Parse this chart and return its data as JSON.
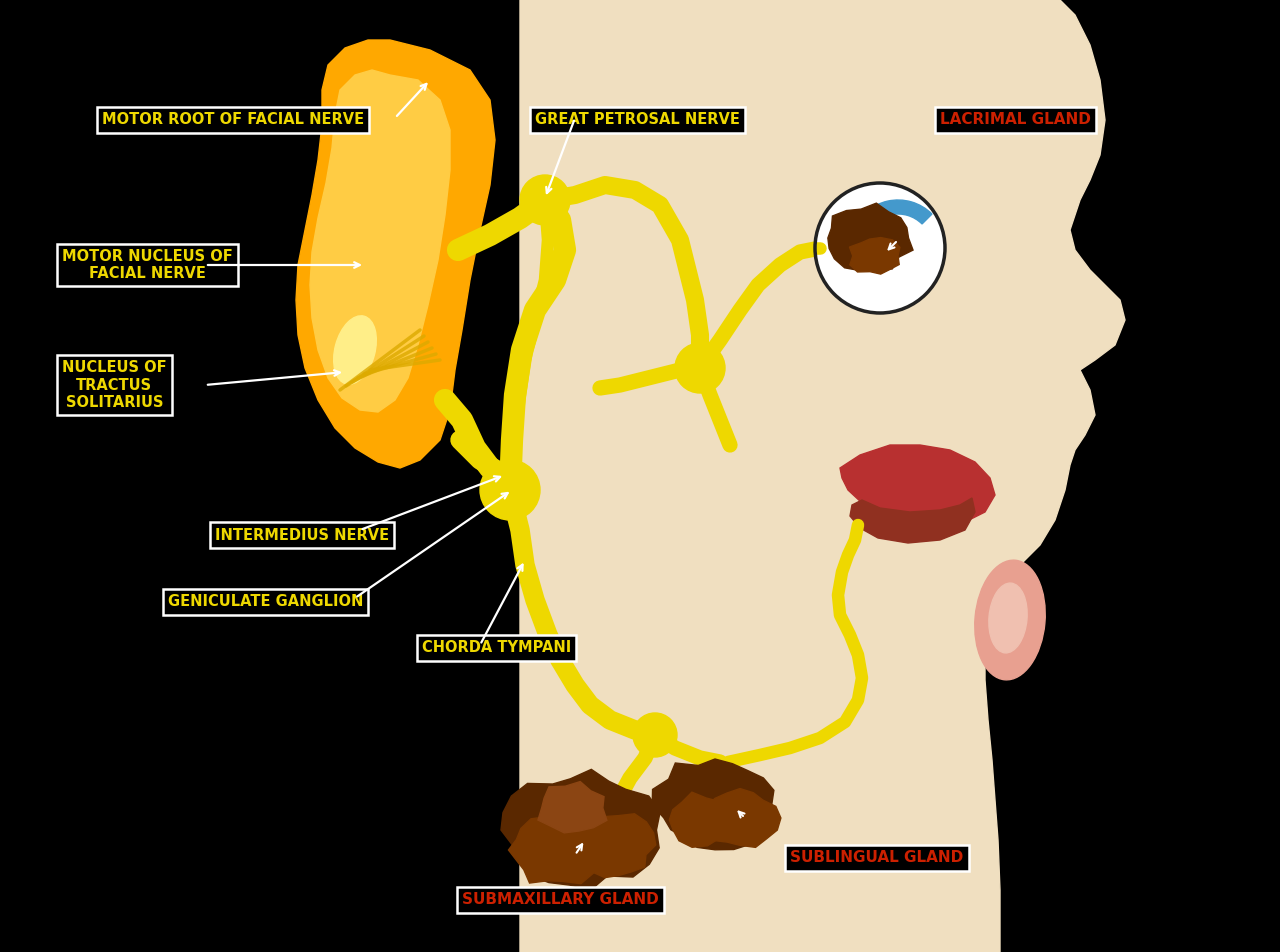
{
  "bg_color": "#000000",
  "face_bg_color": "#F0DFC0",
  "yellow": "#FFD700",
  "yellow_nerve": "#EED800",
  "orange_bright": "#FFA800",
  "orange_dark": "#CC8800",
  "orange_medium": "#E09000",
  "brown": "#5A2800",
  "brown2": "#7A3800",
  "red_lip": "#B83030",
  "red_dark": "#903020",
  "red_label": "#CC2000",
  "white": "#FFFFFF",
  "black": "#000000",
  "blue_eye": "#4499CC",
  "pink_ear": "#E8A090",
  "pink_ear2": "#F0C0B0",
  "labels": {
    "motor_root": "MOTOR ROOT OF FACIAL NERVE",
    "motor_nucleus": "MOTOR NUCLEUS OF\nFACIAL NERVE",
    "nucleus_tractus": "NUCLEUS OF\nTRACTUS\nSOLITARIUS",
    "great_petrosal": "GREAT PETROSAL NERVE",
    "lacrimal": "LACRIMAL GLAND",
    "intermedius": "INTERMEDIUS NERVE",
    "geniculate": "GENICULATE GANGLION",
    "chorda_tympani": "CHORDA TYMPANI",
    "submaxillary": "SUBMAXILLARY GLAND",
    "sublingual": "SUBLINGUAL GLAND"
  }
}
